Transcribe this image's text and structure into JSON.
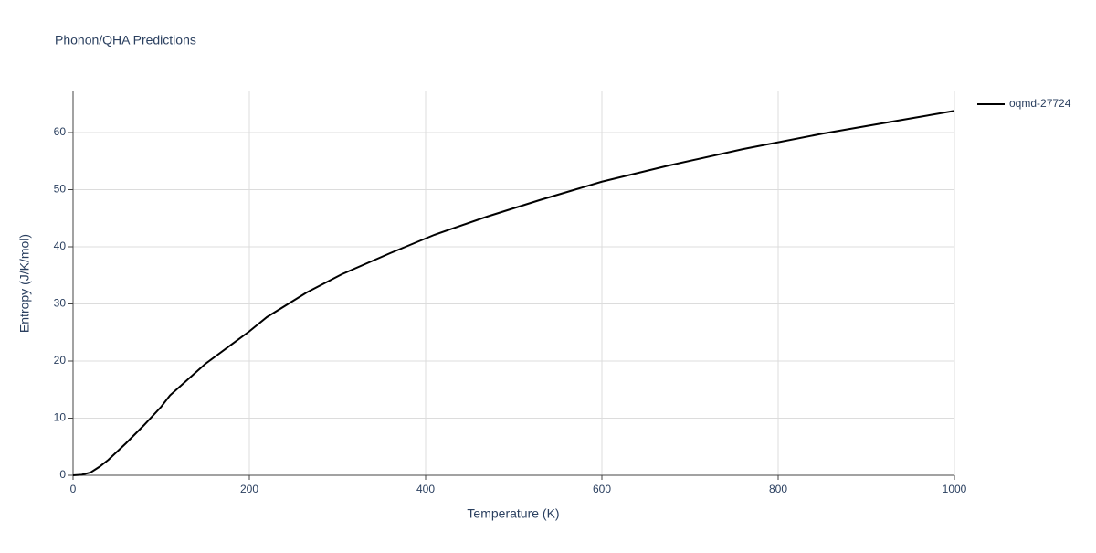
{
  "chart_data": {
    "type": "line",
    "title": "Phonon/QHA Predictions",
    "x_label": "Temperature (K)",
    "y_label": "Entropy (J/K/mol)",
    "x": [
      0,
      10,
      20,
      30,
      40,
      60,
      80,
      100,
      110,
      150,
      200,
      220,
      265,
      305,
      360,
      410,
      470,
      530,
      600,
      675,
      760,
      850,
      940,
      1000
    ],
    "series": [
      {
        "name": "oqmd-27724",
        "color": "#000000",
        "values": [
          0,
          0.1,
          0.5,
          1.5,
          2.7,
          5.6,
          8.7,
          12,
          14,
          19.5,
          25.2,
          27.7,
          32,
          35.2,
          38.9,
          42.1,
          45.3,
          48.2,
          51.4,
          54.2,
          57.1,
          59.8,
          62.2,
          63.8
        ]
      }
    ],
    "xlim": [
      0,
      1000
    ],
    "xticks": [
      0,
      200,
      400,
      600,
      800,
      1000
    ],
    "ylim": [
      0,
      67.2
    ],
    "yticks": [
      0,
      10,
      20,
      30,
      40,
      50,
      60
    ],
    "grid": true,
    "legend": "right"
  }
}
